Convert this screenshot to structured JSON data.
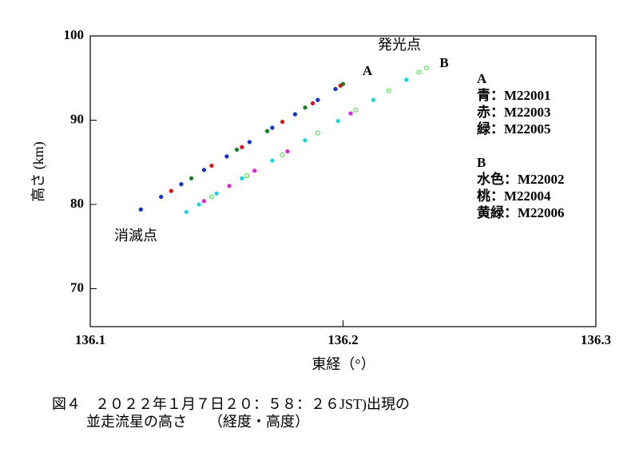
{
  "chart_data": {
    "type": "scatter",
    "x_label": "東経（°）",
    "y_label": "高さ (km)",
    "xlim": [
      136.1,
      136.3
    ],
    "ylim": [
      65.5,
      100
    ],
    "xticks": [
      136.1,
      136.2,
      136.3
    ],
    "yticks": [
      70,
      80,
      90,
      100
    ],
    "legend_position": "right",
    "groups": [
      "A",
      "B"
    ],
    "series": [
      {
        "name": "青：M22001",
        "group": 0,
        "color": "#1030d0",
        "marker": "filled",
        "x": [
          136.12,
          136.128,
          136.136,
          136.145,
          136.154,
          136.163,
          136.172,
          136.181,
          136.19,
          136.197
        ],
        "values": [
          79.4,
          80.9,
          82.4,
          84.1,
          85.7,
          87.4,
          89.1,
          90.7,
          92.4,
          93.7
        ]
      },
      {
        "name": "赤：M22003",
        "group": 0,
        "color": "#e01010",
        "marker": "filled",
        "x": [
          136.132,
          136.148,
          136.16,
          136.176,
          136.188,
          136.199
        ],
        "values": [
          81.6,
          84.6,
          86.8,
          89.8,
          92.0,
          94.1
        ]
      },
      {
        "name": "緑：M22005",
        "group": 0,
        "color": "#108020",
        "marker": "filled",
        "x": [
          136.14,
          136.158,
          136.17,
          136.185,
          136.2
        ],
        "values": [
          83.1,
          86.5,
          88.7,
          91.5,
          94.3
        ]
      },
      {
        "name": "水色：M22002",
        "group": 1,
        "color": "#10d8e0",
        "marker": "filled",
        "x": [
          136.138,
          136.143,
          136.15,
          136.16,
          136.172,
          136.185,
          136.198,
          136.212,
          136.225
        ],
        "values": [
          79.1,
          80.0,
          81.3,
          83.1,
          85.2,
          87.6,
          89.9,
          92.4,
          94.8
        ]
      },
      {
        "name": "桃：M22004",
        "group": 1,
        "color": "#e020e0",
        "marker": "filled",
        "x": [
          136.145,
          136.155,
          136.165,
          136.178,
          136.19,
          136.203
        ],
        "values": [
          80.4,
          82.2,
          84.0,
          86.3,
          88.5,
          90.8
        ]
      },
      {
        "name": "黄緑：M22006",
        "group": 1,
        "color": "#30e030",
        "marker": "open",
        "x": [
          136.148,
          136.162,
          136.176,
          136.19,
          136.205,
          136.218,
          136.23,
          136.233
        ],
        "values": [
          80.9,
          83.4,
          85.9,
          88.5,
          91.2,
          93.5,
          95.7,
          96.2
        ]
      }
    ],
    "annotations": [
      "A",
      "B",
      "発光点",
      "消滅点"
    ],
    "caption": [
      "図４　２０２２年１月７日２０：５８：２６JST)出現の",
      "並走流星の高さ　　（経度・高度）"
    ]
  }
}
